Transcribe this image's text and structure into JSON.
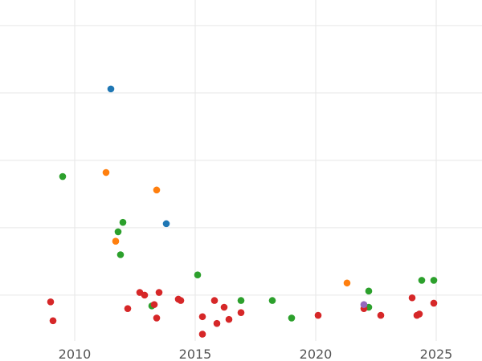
{
  "chart_data": {
    "type": "scatter",
    "title": "",
    "xlabel": "",
    "ylabel": "",
    "xlim": [
      2006.9,
      2026.9
    ],
    "ylim": [
      -3.4,
      21.9
    ],
    "x_ticks": [
      2010,
      2015,
      2020,
      2025
    ],
    "x_tick_labels": [
      "2010",
      "2015",
      "2020",
      "2025"
    ],
    "y_gridlines": [
      0,
      5,
      10,
      15,
      20
    ],
    "y_tick_labels_visible": false,
    "grid": true,
    "legend": "none",
    "series": [
      {
        "color": "#1f77b4",
        "points": [
          {
            "x": 2011.5,
            "y": 15.3
          },
          {
            "x": 2013.8,
            "y": 5.3
          }
        ]
      },
      {
        "color": "#ff7f0e",
        "points": [
          {
            "x": 2011.3,
            "y": 9.1
          },
          {
            "x": 2013.4,
            "y": 7.8
          },
          {
            "x": 2011.7,
            "y": 4.0
          },
          {
            "x": 2021.3,
            "y": 0.9
          }
        ]
      },
      {
        "color": "#2ca02c",
        "points": [
          {
            "x": 2009.5,
            "y": 8.8
          },
          {
            "x": 2012.0,
            "y": 5.4
          },
          {
            "x": 2011.8,
            "y": 4.7
          },
          {
            "x": 2011.9,
            "y": 3.0
          },
          {
            "x": 2015.1,
            "y": 1.5
          },
          {
            "x": 2013.2,
            "y": -0.8
          },
          {
            "x": 2016.9,
            "y": -0.4
          },
          {
            "x": 2018.2,
            "y": -0.4
          },
          {
            "x": 2019.0,
            "y": -1.7
          },
          {
            "x": 2022.2,
            "y": 0.3
          },
          {
            "x": 2022.2,
            "y": -0.9
          },
          {
            "x": 2024.4,
            "y": 1.1
          },
          {
            "x": 2024.9,
            "y": 1.1
          }
        ]
      },
      {
        "color": "#d62728",
        "points": [
          {
            "x": 2009.0,
            "y": -0.5
          },
          {
            "x": 2009.1,
            "y": -1.9
          },
          {
            "x": 2012.2,
            "y": -1.0
          },
          {
            "x": 2012.7,
            "y": 0.2
          },
          {
            "x": 2012.9,
            "y": 0.0
          },
          {
            "x": 2013.3,
            "y": -0.7
          },
          {
            "x": 2013.5,
            "y": 0.2
          },
          {
            "x": 2013.4,
            "y": -1.7
          },
          {
            "x": 2014.3,
            "y": -0.3
          },
          {
            "x": 2014.4,
            "y": -0.4
          },
          {
            "x": 2015.3,
            "y": -1.6
          },
          {
            "x": 2015.3,
            "y": -2.9
          },
          {
            "x": 2015.8,
            "y": -0.4
          },
          {
            "x": 2016.2,
            "y": -0.9
          },
          {
            "x": 2015.9,
            "y": -2.1
          },
          {
            "x": 2016.4,
            "y": -1.8
          },
          {
            "x": 2016.9,
            "y": -1.3
          },
          {
            "x": 2020.1,
            "y": -1.5
          },
          {
            "x": 2022.0,
            "y": -1.0
          },
          {
            "x": 2022.7,
            "y": -1.5
          },
          {
            "x": 2024.0,
            "y": -0.2
          },
          {
            "x": 2024.2,
            "y": -1.5
          },
          {
            "x": 2024.3,
            "y": -1.4
          },
          {
            "x": 2024.9,
            "y": -0.6
          }
        ]
      },
      {
        "color": "#9467bd",
        "points": [
          {
            "x": 2022.0,
            "y": -0.7
          }
        ]
      }
    ]
  }
}
